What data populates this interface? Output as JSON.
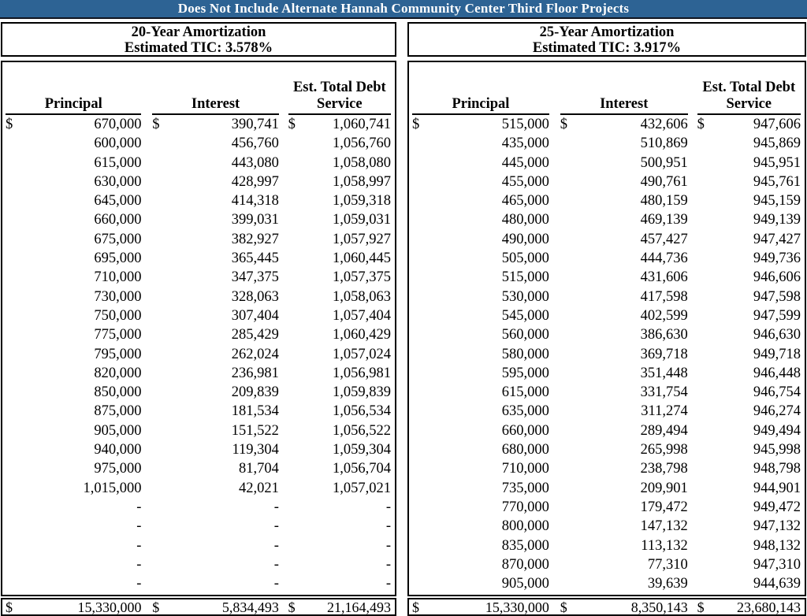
{
  "banner": {
    "text": "Does Not Include Alternate Hannah Community Center Third Floor Projects"
  },
  "colors": {
    "banner_bg": "#2d6394",
    "banner_text": "#ffffff",
    "border": "#000000"
  },
  "currency_symbol": "$",
  "panels": [
    {
      "title": "20-Year Amortization",
      "subtitle": "Estimated TIC: 3.578%",
      "columns": [
        "Principal",
        "Interest",
        "Est. Total Debt Service"
      ],
      "rows": [
        [
          "670,000",
          "390,741",
          "1,060,741"
        ],
        [
          "600,000",
          "456,760",
          "1,056,760"
        ],
        [
          "615,000",
          "443,080",
          "1,058,080"
        ],
        [
          "630,000",
          "428,997",
          "1,058,997"
        ],
        [
          "645,000",
          "414,318",
          "1,059,318"
        ],
        [
          "660,000",
          "399,031",
          "1,059,031"
        ],
        [
          "675,000",
          "382,927",
          "1,057,927"
        ],
        [
          "695,000",
          "365,445",
          "1,060,445"
        ],
        [
          "710,000",
          "347,375",
          "1,057,375"
        ],
        [
          "730,000",
          "328,063",
          "1,058,063"
        ],
        [
          "750,000",
          "307,404",
          "1,057,404"
        ],
        [
          "775,000",
          "285,429",
          "1,060,429"
        ],
        [
          "795,000",
          "262,024",
          "1,057,024"
        ],
        [
          "820,000",
          "236,981",
          "1,056,981"
        ],
        [
          "850,000",
          "209,839",
          "1,059,839"
        ],
        [
          "875,000",
          "181,534",
          "1,056,534"
        ],
        [
          "905,000",
          "151,522",
          "1,056,522"
        ],
        [
          "940,000",
          "119,304",
          "1,059,304"
        ],
        [
          "975,000",
          "81,704",
          "1,056,704"
        ],
        [
          "1,015,000",
          "42,021",
          "1,057,021"
        ],
        [
          "-",
          "-",
          "-"
        ],
        [
          "-",
          "-",
          "-"
        ],
        [
          "-",
          "-",
          "-"
        ],
        [
          "-",
          "-",
          "-"
        ],
        [
          "-",
          "-",
          "-"
        ]
      ],
      "totals": [
        "15,330,000",
        "5,834,493",
        "21,164,493"
      ]
    },
    {
      "title": "25-Year Amortization",
      "subtitle": "Estimated TIC: 3.917%",
      "columns": [
        "Principal",
        "Interest",
        "Est. Total Debt Service"
      ],
      "rows": [
        [
          "515,000",
          "432,606",
          "947,606"
        ],
        [
          "435,000",
          "510,869",
          "945,869"
        ],
        [
          "445,000",
          "500,951",
          "945,951"
        ],
        [
          "455,000",
          "490,761",
          "945,761"
        ],
        [
          "465,000",
          "480,159",
          "945,159"
        ],
        [
          "480,000",
          "469,139",
          "949,139"
        ],
        [
          "490,000",
          "457,427",
          "947,427"
        ],
        [
          "505,000",
          "444,736",
          "949,736"
        ],
        [
          "515,000",
          "431,606",
          "946,606"
        ],
        [
          "530,000",
          "417,598",
          "947,598"
        ],
        [
          "545,000",
          "402,599",
          "947,599"
        ],
        [
          "560,000",
          "386,630",
          "946,630"
        ],
        [
          "580,000",
          "369,718",
          "949,718"
        ],
        [
          "595,000",
          "351,448",
          "946,448"
        ],
        [
          "615,000",
          "331,754",
          "946,754"
        ],
        [
          "635,000",
          "311,274",
          "946,274"
        ],
        [
          "660,000",
          "289,494",
          "949,494"
        ],
        [
          "680,000",
          "265,998",
          "945,998"
        ],
        [
          "710,000",
          "238,798",
          "948,798"
        ],
        [
          "735,000",
          "209,901",
          "944,901"
        ],
        [
          "770,000",
          "179,472",
          "949,472"
        ],
        [
          "800,000",
          "147,132",
          "947,132"
        ],
        [
          "835,000",
          "113,132",
          "948,132"
        ],
        [
          "870,000",
          "77,310",
          "947,310"
        ],
        [
          "905,000",
          "39,639",
          "944,639"
        ]
      ],
      "totals": [
        "15,330,000",
        "8,350,143",
        "23,680,143"
      ]
    }
  ]
}
